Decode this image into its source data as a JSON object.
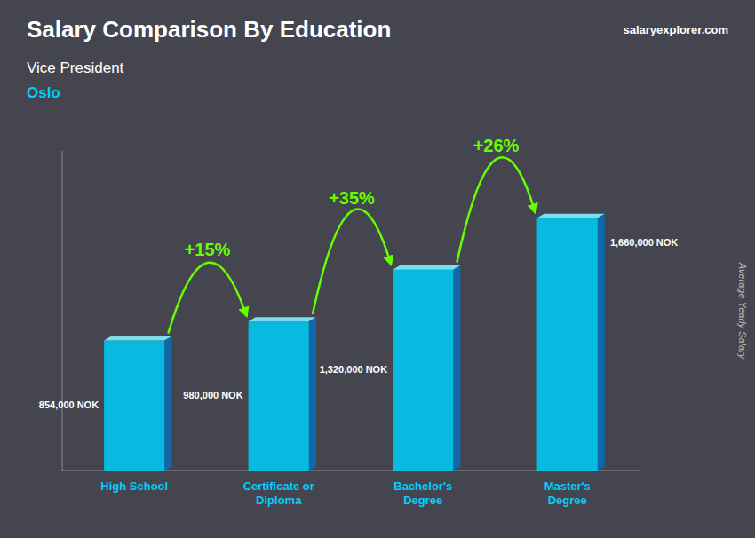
{
  "chart_data": {
    "type": "bar",
    "title": "Salary Comparison By Education",
    "subtitle": "Vice President",
    "city": "Oslo",
    "source": "salaryexplorer.com",
    "ylabel": "Average Yearly Salary",
    "categories": [
      "High School",
      "Certificate or\nDiploma",
      "Bachelor's\nDegree",
      "Master's\nDegree"
    ],
    "values": [
      854000,
      980000,
      1320000,
      1660000
    ],
    "value_labels": [
      "854,000 NOK",
      "980,000 NOK",
      "1,320,000 NOK",
      "1,660,000 NOK"
    ],
    "annotations": [
      "+15%",
      "+35%",
      "+26%"
    ],
    "color": "#00c8f0",
    "ylim": [
      0,
      2100000
    ],
    "grid": false,
    "data_labels": true,
    "tick_labels": "x"
  }
}
